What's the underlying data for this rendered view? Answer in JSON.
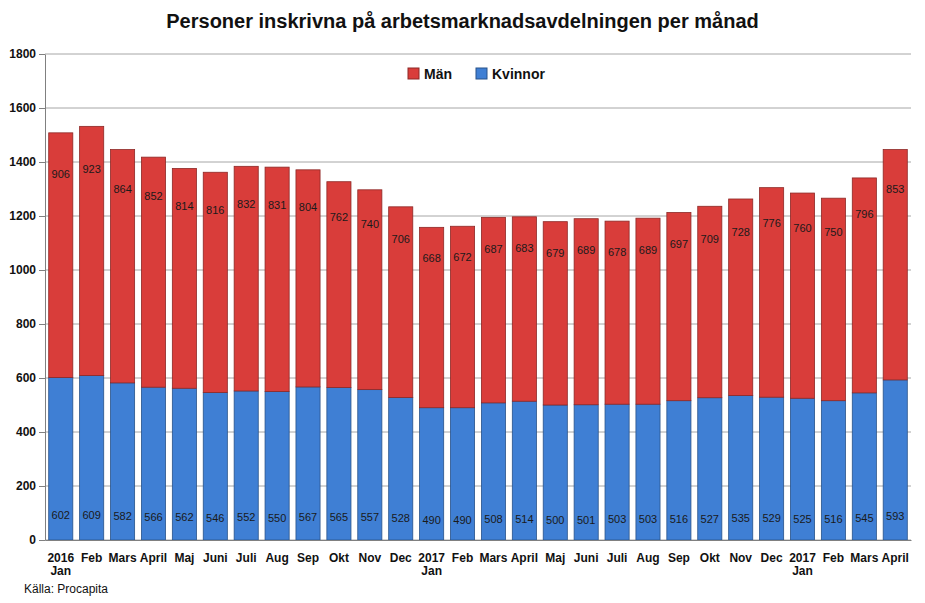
{
  "chart_data": {
    "type": "bar",
    "title": "Personer inskrivna på arbetsmarknadsavdelningen per månad",
    "source": "Källa: Procapita",
    "categories": [
      "2016 Jan",
      "Feb",
      "Mars",
      "April",
      "Maj",
      "Juni",
      "Juli",
      "Aug",
      "Sep",
      "Okt",
      "Nov",
      "Dec",
      "2017 Jan",
      "Feb",
      "Mars",
      "April",
      "Maj",
      "Juni",
      "Juli",
      "Aug",
      "Sep",
      "Okt",
      "Nov",
      "Dec",
      "2017 Jan",
      "Feb",
      "Mars",
      "April"
    ],
    "series": [
      {
        "name": "Kvinnor",
        "color": "#3f7fd4",
        "values": [
          602,
          609,
          582,
          566,
          562,
          546,
          552,
          550,
          567,
          565,
          557,
          528,
          490,
          490,
          508,
          514,
          500,
          501,
          503,
          503,
          516,
          527,
          535,
          529,
          525,
          516,
          545,
          593
        ]
      },
      {
        "name": "Män",
        "color": "#d93d3a",
        "values": [
          906,
          923,
          864,
          852,
          814,
          816,
          832,
          831,
          804,
          762,
          740,
          706,
          668,
          672,
          687,
          683,
          679,
          689,
          678,
          689,
          697,
          709,
          728,
          776,
          760,
          750,
          796,
          853
        ]
      }
    ],
    "stacked": true,
    "data_labels": true,
    "grid": true,
    "legend": "top",
    "ylim": [
      0,
      1800
    ],
    "yticks": [
      0,
      200,
      400,
      600,
      800,
      1000,
      1200,
      1400,
      1600,
      1800
    ]
  }
}
